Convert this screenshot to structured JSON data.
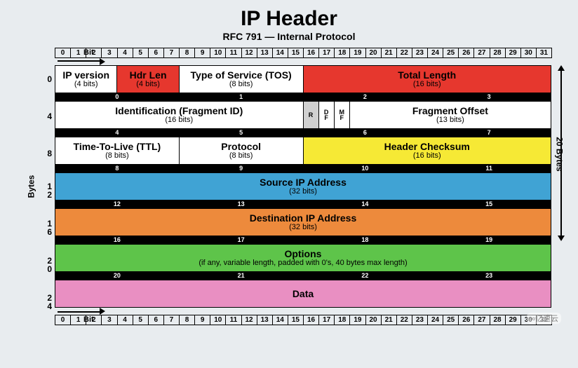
{
  "title": "IP Header",
  "subtitle": "RFC 791 — Internal Protocol",
  "bit_label": "Bit",
  "bits": [
    "0",
    "1",
    "2",
    "3",
    "4",
    "5",
    "6",
    "7",
    "8",
    "9",
    "10",
    "11",
    "12",
    "13",
    "14",
    "15",
    "16",
    "17",
    "18",
    "19",
    "20",
    "21",
    "22",
    "23",
    "24",
    "25",
    "26",
    "27",
    "28",
    "29",
    "30",
    "31"
  ],
  "left_label": "Bytes",
  "right_label": "20 Bytes",
  "watermark": "∞亿速云",
  "colors": {
    "white": "#ffffff",
    "red": "#e6372e",
    "yellow": "#f6e935",
    "blue": "#40a3d4",
    "orange": "#ed8a3c",
    "green": "#5ec44a",
    "pink": "#e98fc2",
    "gray": "#d0d0d0"
  },
  "rows": [
    {
      "offset": "0",
      "cells": [
        {
          "span": 4,
          "name": "IP version",
          "bits": "(4 bits)",
          "color": "white"
        },
        {
          "span": 4,
          "name": "Hdr Len",
          "bits": "(4 bits)",
          "color": "red"
        },
        {
          "span": 8,
          "name": "Type of Service (TOS)",
          "bits": "(8 bits)",
          "color": "white"
        },
        {
          "span": 16,
          "name": "Total Length",
          "bits": "(16 bits)",
          "color": "red"
        }
      ],
      "bytes": [
        "0",
        "1",
        "2",
        "3"
      ]
    },
    {
      "offset": "4",
      "cells": [
        {
          "span": 16,
          "name": "Identification (Fragment ID)",
          "bits": "(16 bits)",
          "color": "white"
        },
        {
          "span": 1,
          "name": "R",
          "bits": "",
          "color": "gray",
          "flag": true
        },
        {
          "span": 1,
          "name": "D\nF",
          "bits": "",
          "color": "white",
          "flag": true
        },
        {
          "span": 1,
          "name": "M\nF",
          "bits": "",
          "color": "white",
          "flag": true
        },
        {
          "span": 13,
          "name": "Fragment Offset",
          "bits": "(13 bits)",
          "color": "white"
        }
      ],
      "bytes": [
        "4",
        "5",
        "6",
        "7"
      ]
    },
    {
      "offset": "8",
      "cells": [
        {
          "span": 8,
          "name": "Time-To-Live (TTL)",
          "bits": "(8 bits)",
          "color": "white"
        },
        {
          "span": 8,
          "name": "Protocol",
          "bits": "(8 bits)",
          "color": "white"
        },
        {
          "span": 16,
          "name": "Header Checksum",
          "bits": "(16 bits)",
          "color": "yellow"
        }
      ],
      "bytes": [
        "8",
        "9",
        "10",
        "11"
      ]
    },
    {
      "offset": "1\n2",
      "cells": [
        {
          "span": 32,
          "name": "Source IP Address",
          "bits": "(32 bits)",
          "color": "blue"
        }
      ],
      "bytes": [
        "12",
        "13",
        "14",
        "15"
      ]
    },
    {
      "offset": "1\n6",
      "cells": [
        {
          "span": 32,
          "name": "Destination IP Address",
          "bits": "(32 bits)",
          "color": "orange"
        }
      ],
      "bytes": [
        "16",
        "17",
        "18",
        "19"
      ]
    },
    {
      "offset": "2\n0",
      "cells": [
        {
          "span": 32,
          "name": "Options",
          "bits": "(if any, variable length, padded with 0's, 40 bytes max length)",
          "color": "green"
        }
      ],
      "bytes": [
        "20",
        "21",
        "22",
        "23"
      ]
    },
    {
      "offset": "2\n4",
      "cells": [
        {
          "span": 32,
          "name": "Data",
          "bits": "",
          "color": "pink"
        }
      ],
      "bytes": null
    }
  ]
}
